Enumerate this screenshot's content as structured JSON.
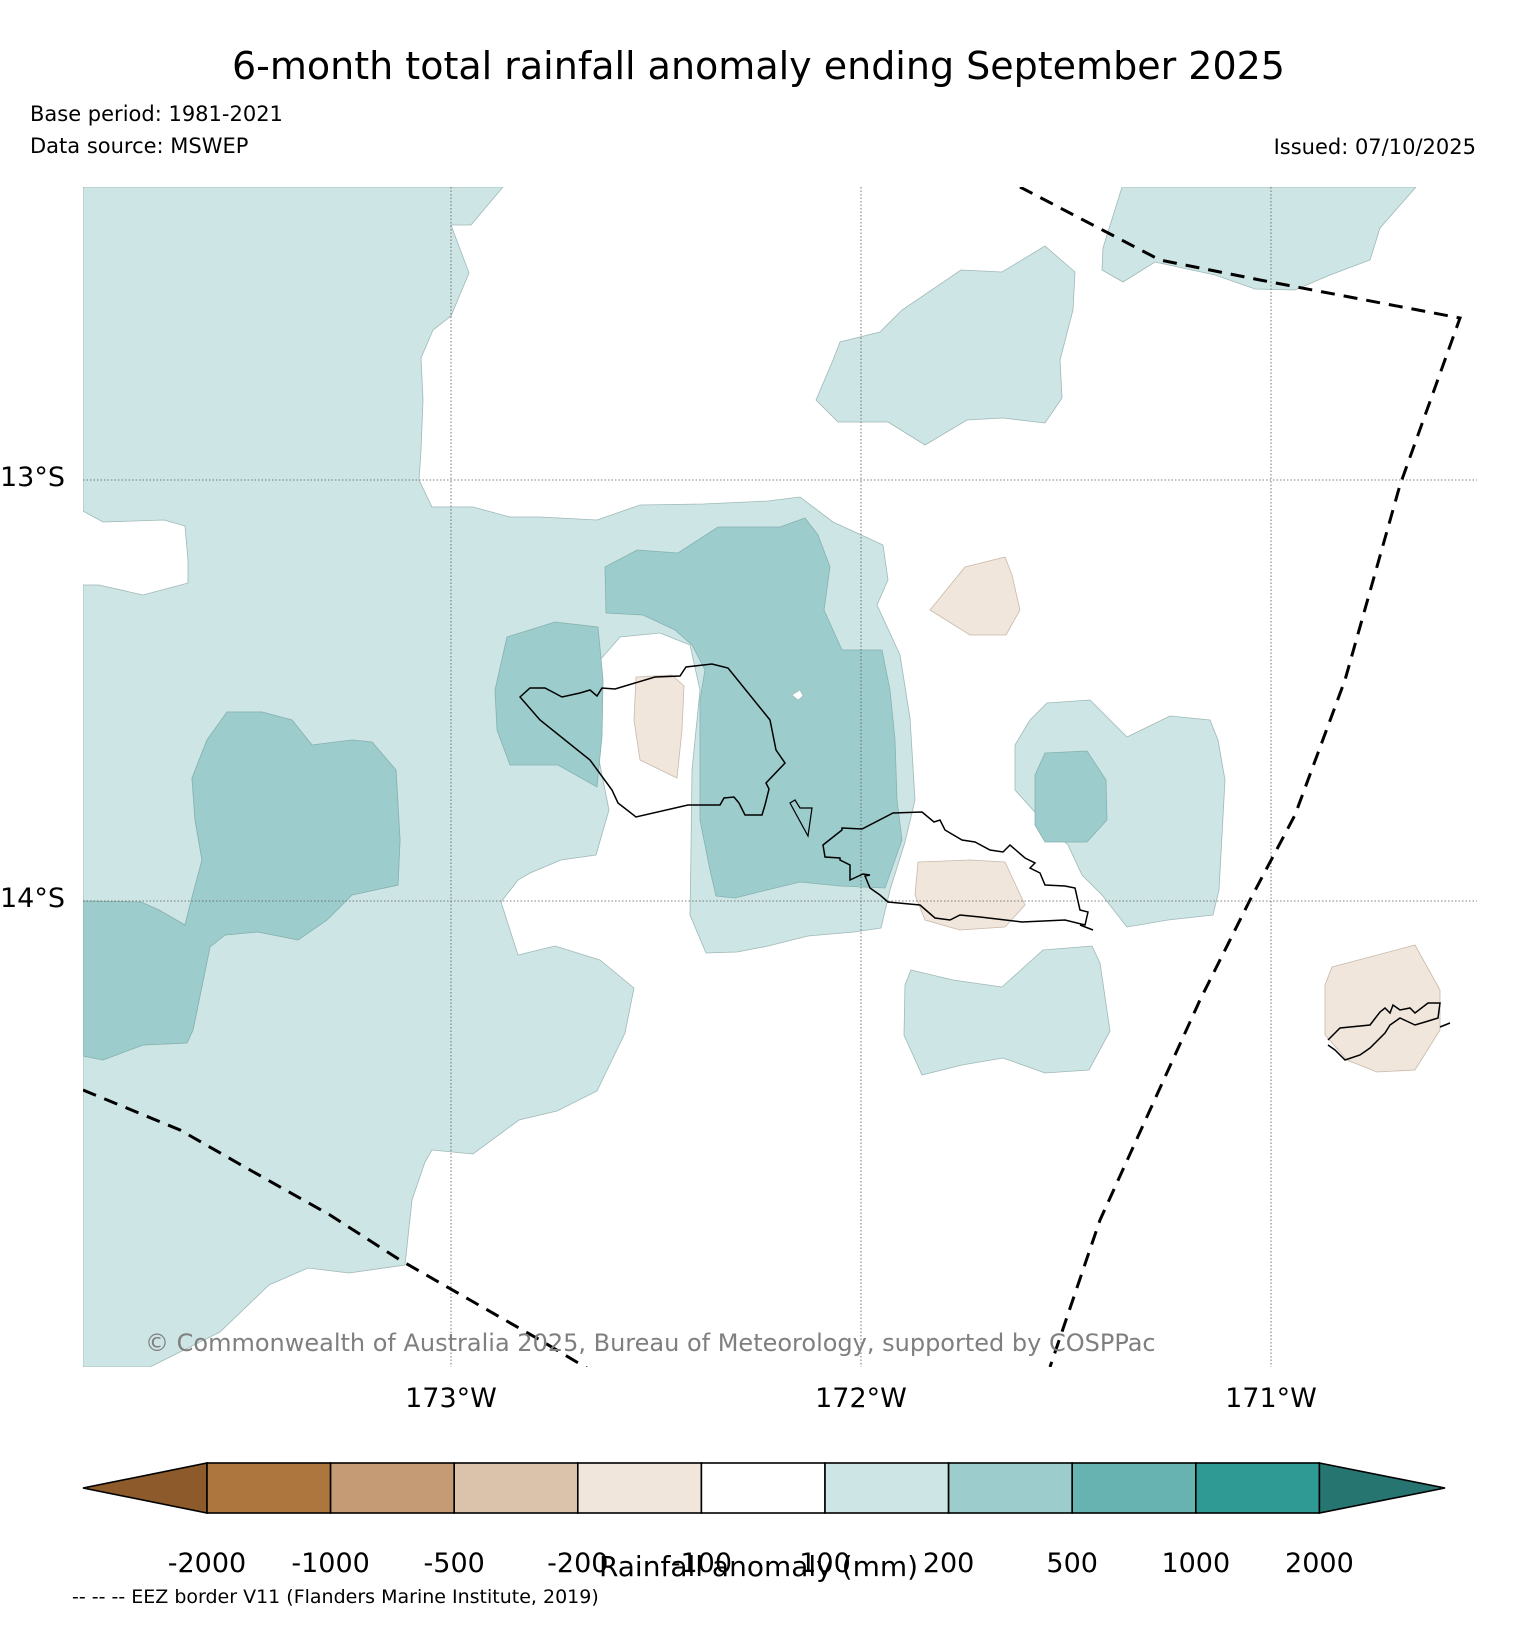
{
  "title": "6-month total rainfall anomaly ending September 2025",
  "base_period": "Base period: 1981-2021",
  "data_source": "Data source: MSWEP",
  "issued": "Issued: 07/10/2025",
  "copyright": "© Commonwealth of Australia 2025, Bureau of Meteorology, supported by COSPPac",
  "axes": {
    "lon_ticks": [
      "173°W",
      "172°W",
      "171°W"
    ],
    "lat_ticks": [
      "13°S",
      "14°S"
    ]
  },
  "colorbar": {
    "title": "Rainfall anomaly (mm)",
    "ticks": [
      "-2000",
      "-1000",
      "-500",
      "-200",
      "-100",
      "100",
      "200",
      "500",
      "1000",
      "2000"
    ],
    "colors": [
      "#8c5a2b",
      "#ad763f",
      "#c49b74",
      "#dbc2aa",
      "#f0e6dc",
      "#ffffff",
      "#cde5e4",
      "#9ccccc",
      "#67b3b2",
      "#2f9994",
      "#277570"
    ]
  },
  "legend_note": "-- -- -- EEZ border V11 (Flanders Marine Institute, 2019)"
}
